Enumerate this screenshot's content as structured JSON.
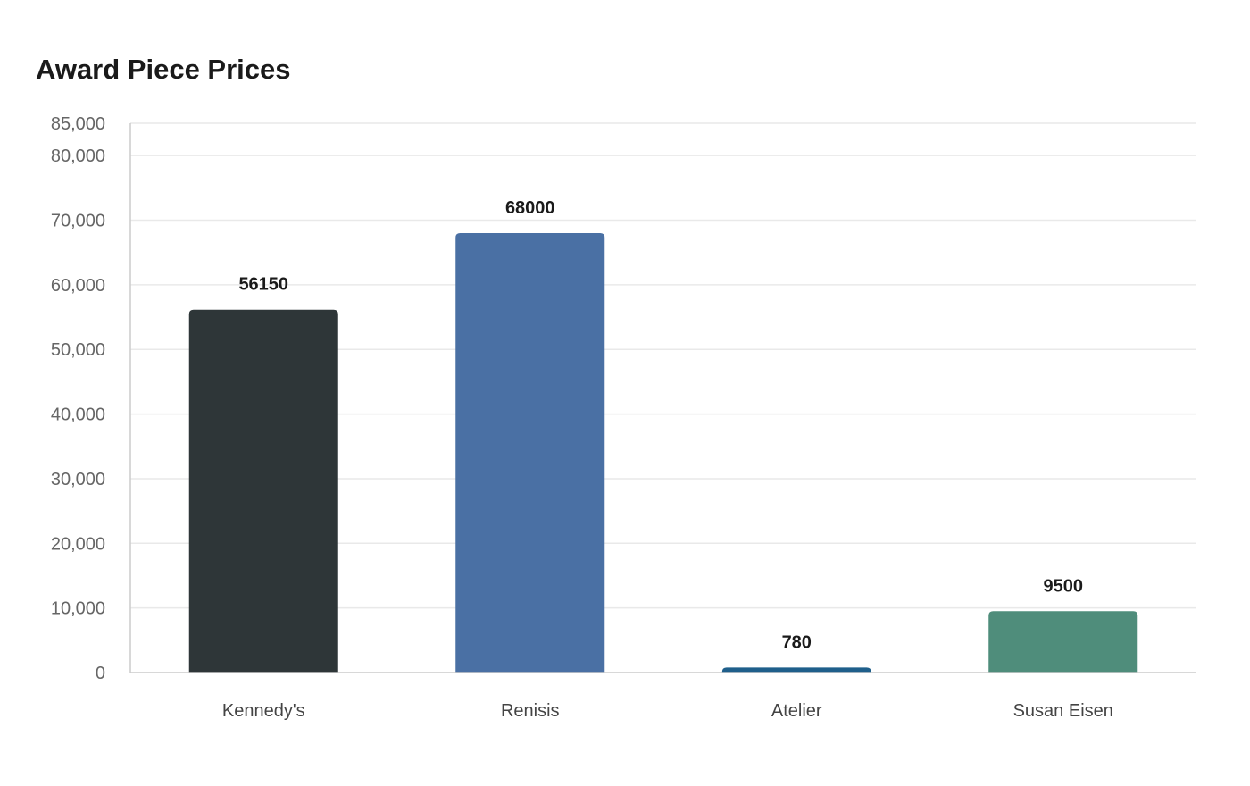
{
  "chart_data": {
    "type": "bar",
    "title": "Award Piece Prices",
    "xlabel": "",
    "ylabel": "",
    "categories": [
      "Kennedy's",
      "Renisis",
      "Atelier",
      "Susan Eisen"
    ],
    "values": [
      56150,
      68000,
      780,
      9500
    ],
    "colors": [
      "#2e3638",
      "#4a70a4",
      "#1f5f8b",
      "#4f8d7b"
    ],
    "ylim": [
      0,
      85000
    ],
    "yticks": [
      0,
      10000,
      20000,
      30000,
      40000,
      50000,
      60000,
      70000,
      80000,
      85000
    ],
    "ytick_labels": [
      "0",
      "10,000",
      "20,000",
      "30,000",
      "40,000",
      "50,000",
      "60,000",
      "70,000",
      "80,000",
      "85,000"
    ],
    "grid": true,
    "legend": "none"
  }
}
